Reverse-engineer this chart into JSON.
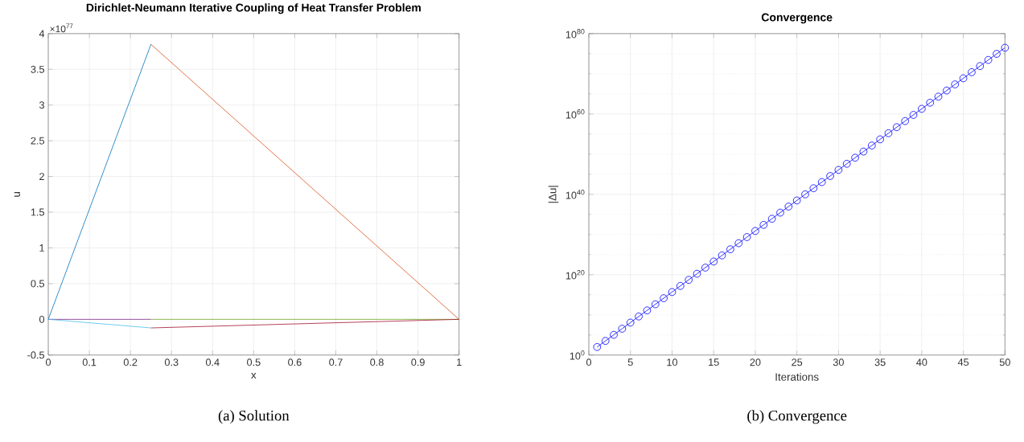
{
  "chart_data": [
    {
      "type": "line",
      "title": "Dirichlet-Neumann Iterative Coupling of Heat Transfer Problem",
      "xlabel": "x",
      "ylabel": "u",
      "annotations": [
        "×10$^{77}$",
        "(a) Solution"
      ],
      "series": [
        {
          "color": "#0072bd",
          "x": [
            0,
            0.25
          ],
          "values": [
            0,
            3.85
          ]
        },
        {
          "color": "#d95319",
          "x": [
            0.25,
            1
          ],
          "values": [
            3.85,
            0
          ]
        },
        {
          "color": "#7e2f8e",
          "x": [
            0,
            0.25
          ],
          "values": [
            0,
            0
          ]
        },
        {
          "color": "#77ac30",
          "x": [
            0.25,
            1
          ],
          "values": [
            0,
            0
          ]
        },
        {
          "color": "#4dbeee",
          "x": [
            0,
            0.25
          ],
          "values": [
            0,
            -0.12
          ]
        },
        {
          "color": "#a2142f",
          "x": [
            0.25,
            1
          ],
          "values": [
            -0.12,
            0
          ]
        }
      ],
      "xlim": [
        0,
        1
      ],
      "ylim": [
        -0.5,
        4
      ],
      "xticks": [
        0,
        0.1,
        0.2,
        0.3,
        0.4,
        0.5,
        0.6,
        0.7,
        0.8,
        0.9,
        1
      ],
      "yticks": [
        -0.5,
        0,
        0.5,
        1,
        1.5,
        2,
        2.5,
        3,
        3.5,
        4
      ],
      "grid": true
    },
    {
      "type": "line",
      "title": "Convergence",
      "xlabel": "Iterations",
      "ylabel": "|Δu|",
      "annotations": [
        "(b) Convergence"
      ],
      "x": [
        1,
        2,
        3,
        4,
        5,
        6,
        7,
        8,
        9,
        10,
        11,
        12,
        13,
        14,
        15,
        16,
        17,
        18,
        19,
        20,
        21,
        22,
        23,
        24,
        25,
        26,
        27,
        28,
        29,
        30,
        31,
        32,
        33,
        34,
        35,
        36,
        37,
        38,
        39,
        40,
        41,
        42,
        43,
        44,
        45,
        46,
        47,
        48,
        49,
        50
      ],
      "series": [
        {
          "color": "#0000ff",
          "values": [
            100.0,
            3300.0,
            110000.0,
            3600000.0,
            120000000.0,
            4000000000.0,
            130000000000.0,
            4400000000000.0,
            140000000000000.0,
            4800000000000000.0,
            1.6e+17,
            5.2e+18,
            1.7e+20,
            5.8e+21,
            1.9e+23,
            6.3e+24,
            2.1e+26,
            6.9e+27,
            2.3e+29,
            7.6e+30,
            2.5e+32,
            8.3e+33,
            2.8e+35,
            9.1e+36,
            3e+38,
            1e+40,
            3.3e+41,
            1.1e+43,
            3.6e+44,
            1.2e+46,
            4e+47,
            1.3e+49,
            4.4e+50,
            1.4e+52,
            4.8e+53,
            1.6e+55,
            5.2e+56,
            1.7e+58,
            5.8e+59,
            1.9e+61,
            6.3e+62,
            2.1e+64,
            6.9e+65,
            2.3e+67,
            7.6e+68,
            2.5e+70,
            8.3e+71,
            2.8e+73,
            9.1e+74,
            3e+76
          ]
        }
      ],
      "marker": "circle",
      "log": "y",
      "xlim": [
        0,
        50
      ],
      "ylim": [
        1,
        1e+80
      ],
      "xticks": [
        0,
        5,
        10,
        15,
        20,
        25,
        30,
        35,
        40,
        45,
        50
      ],
      "yticks": [
        {
          "value": 1,
          "label": "10$^{0}$"
        },
        {
          "value": 1e+20,
          "label": "10$^{20}$"
        },
        {
          "value": 1e+40,
          "label": "10$^{40}$"
        },
        {
          "value": 1e+60,
          "label": "10$^{60}$"
        },
        {
          "value": 1e+80,
          "label": "10$^{80}$"
        }
      ],
      "grid": true
    }
  ]
}
